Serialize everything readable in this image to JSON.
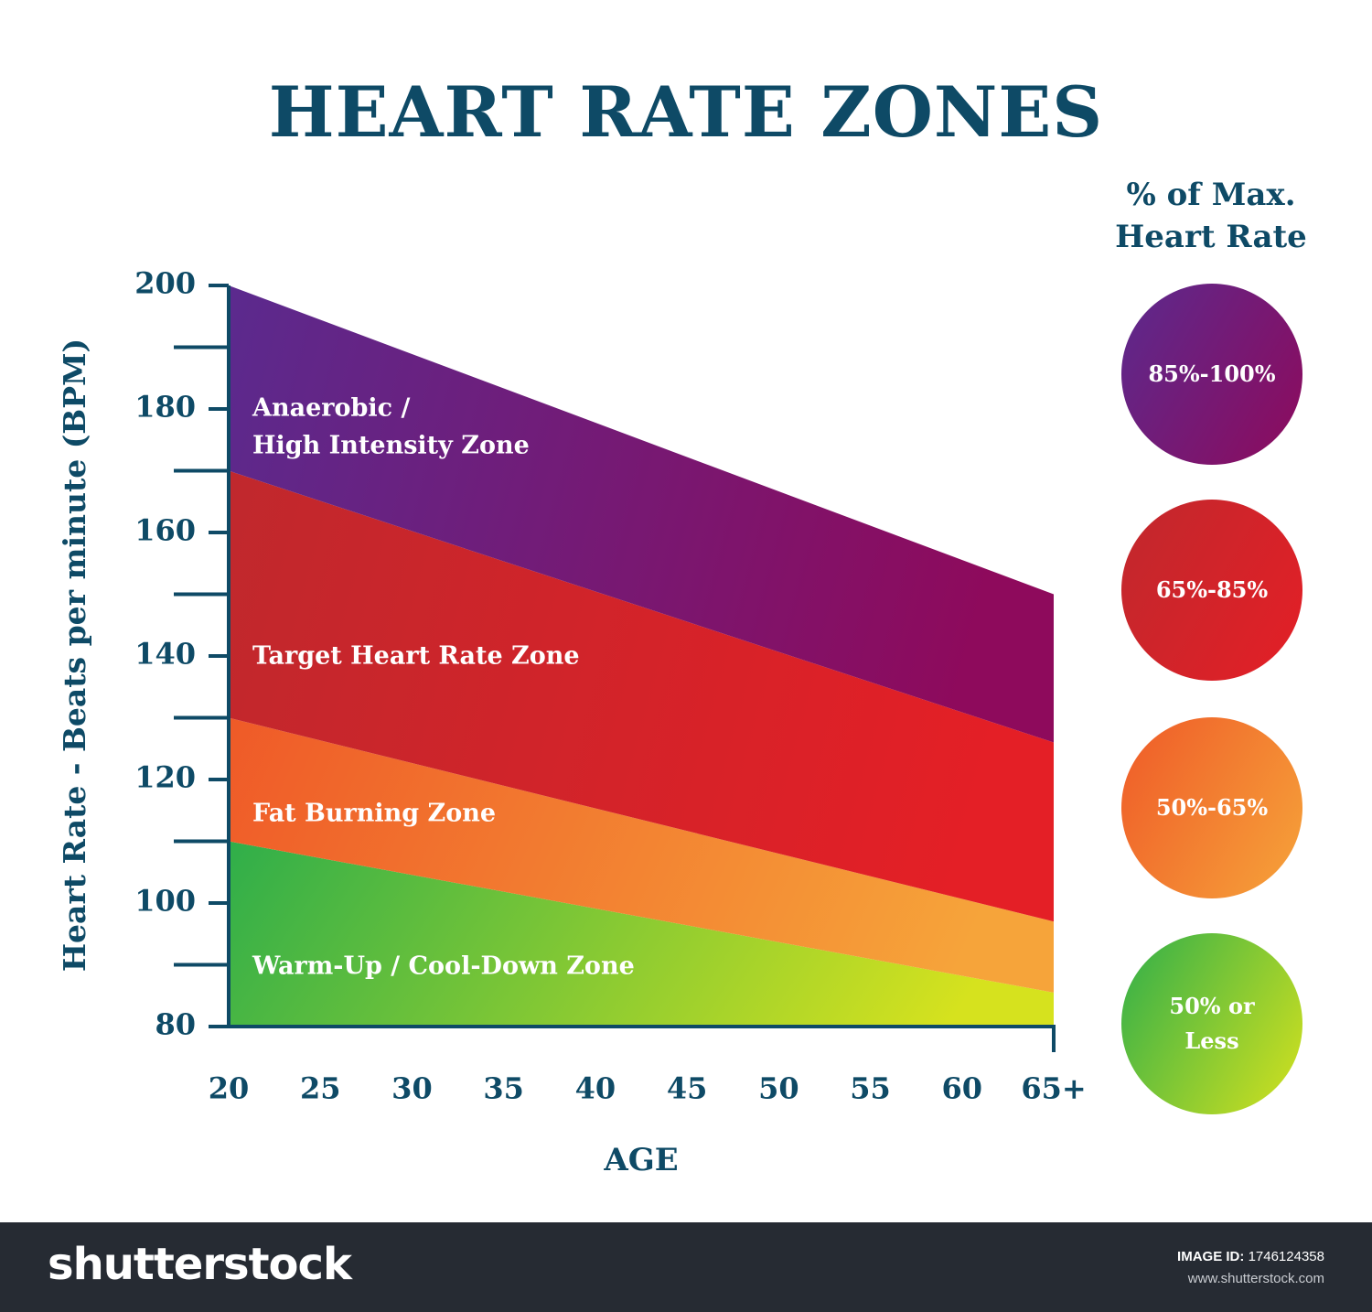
{
  "title": "HEART RATE ZONES",
  "legend": {
    "title_line1": "% of Max.",
    "title_line2": "Heart Rate",
    "items": [
      {
        "label": "85%-100%",
        "color_from": "#5b2a8e",
        "color_to": "#8e0a5c"
      },
      {
        "label": "65%-85%",
        "color_from": "#c0282d",
        "color_to": "#e41f26"
      },
      {
        "label": "50%-65%",
        "color_from": "#ef5a28",
        "color_to": "#f6a43a"
      },
      {
        "label": "50% or\nLess",
        "color_from": "#2fae4a",
        "color_to": "#d6e21e"
      }
    ]
  },
  "chart_data": {
    "type": "area",
    "title": "HEART RATE ZONES",
    "xlabel": "AGE",
    "ylabel": "Heart Rate - Beats per minute (BPM)",
    "x": [
      20,
      65
    ],
    "x_ticks": [
      20,
      25,
      30,
      35,
      40,
      45,
      50,
      55,
      60,
      65
    ],
    "x_tick_labels": [
      "20",
      "25",
      "30",
      "35",
      "40",
      "45",
      "50",
      "55",
      "60",
      "65+"
    ],
    "y_ticks": [
      80,
      100,
      120,
      140,
      160,
      180,
      200
    ],
    "ylim": [
      80,
      200
    ],
    "xlim": [
      20,
      65
    ],
    "series": [
      {
        "name": "Warm-Up / Cool-Down Zone",
        "lower": [
          80,
          80
        ],
        "upper": [
          110,
          85.5
        ],
        "color_from": "#2fae4a",
        "color_to": "#d6e21e"
      },
      {
        "name": "Fat Burning Zone",
        "lower": [
          110,
          85.5
        ],
        "upper": [
          130,
          97
        ],
        "color_from": "#ef5a28",
        "color_to": "#f6a43a"
      },
      {
        "name": "Target Heart Rate Zone",
        "lower": [
          130,
          97
        ],
        "upper": [
          170,
          126
        ],
        "color_from": "#c0282d",
        "color_to": "#e41f26"
      },
      {
        "name": "Anaerobic /\nHigh Intensity Zone",
        "lower": [
          170,
          126
        ],
        "upper": [
          200,
          150
        ],
        "color_from": "#5b2a8e",
        "color_to": "#8e0a5c"
      }
    ]
  },
  "footer": {
    "logo": "shutterstock",
    "image_id_label": "IMAGE ID:",
    "image_id": "1746124358",
    "url": "www.shutterstock.com"
  }
}
